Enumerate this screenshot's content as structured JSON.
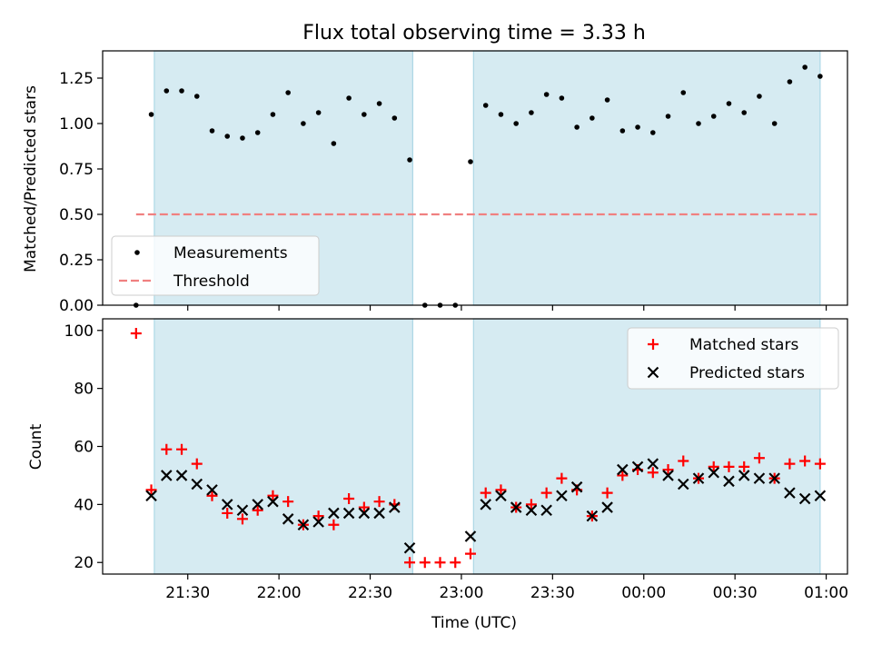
{
  "figure": {
    "title": "Flux total observing time = 3.33 h",
    "xlabel": "Time (UTC)"
  },
  "colors": {
    "shade": "#add8e6",
    "measurement": "#000000",
    "threshold": "#f08080",
    "matched": "#ff0000",
    "predicted": "#000000"
  },
  "chart_data": [
    {
      "type": "scatter",
      "panel": "top",
      "ylabel": "Matched/Predicted stars",
      "xlim": [
        "21:02",
        "01:07"
      ],
      "ylim": [
        0,
        1.4
      ],
      "yticks": [
        "0.00",
        "0.25",
        "0.50",
        "0.75",
        "1.00",
        "1.25"
      ],
      "ytick_values": [
        0,
        0.25,
        0.5,
        0.75,
        1.0,
        1.25
      ],
      "shaded_spans": [
        [
          "21:19",
          "22:44"
        ],
        [
          "23:04",
          "00:58"
        ]
      ],
      "threshold": {
        "name": "Threshold",
        "value": 0.5,
        "x_range": [
          "21:13",
          "00:57"
        ]
      },
      "legend": {
        "position": "lower-left",
        "entries": [
          "Measurements",
          "Threshold"
        ]
      },
      "series": [
        {
          "name": "Measurements",
          "x": [
            "21:13",
            "21:18",
            "21:23",
            "21:28",
            "21:33",
            "21:38",
            "21:43",
            "21:48",
            "21:53",
            "21:58",
            "22:03",
            "22:08",
            "22:13",
            "22:18",
            "22:23",
            "22:28",
            "22:33",
            "22:38",
            "22:43",
            "22:48",
            "22:53",
            "22:58",
            "23:03",
            "23:08",
            "23:13",
            "23:18",
            "23:23",
            "23:28",
            "23:33",
            "23:38",
            "23:43",
            "23:48",
            "23:53",
            "23:58",
            "00:03",
            "00:08",
            "00:13",
            "00:18",
            "00:23",
            "00:28",
            "00:33",
            "00:38",
            "00:43",
            "00:48",
            "00:53",
            "00:58"
          ],
          "y": [
            0.0,
            1.05,
            1.18,
            1.18,
            1.15,
            0.96,
            0.93,
            0.92,
            0.95,
            1.05,
            1.17,
            1.0,
            1.06,
            0.89,
            1.14,
            1.05,
            1.11,
            1.03,
            0.8,
            0.0,
            0.0,
            0.0,
            0.79,
            1.1,
            1.05,
            1.0,
            1.06,
            1.16,
            1.14,
            0.98,
            1.03,
            1.13,
            0.96,
            0.98,
            0.95,
            1.04,
            1.17,
            1.0,
            1.04,
            1.11,
            1.06,
            1.15,
            1.0,
            1.23,
            1.31,
            1.26
          ]
        }
      ]
    },
    {
      "type": "scatter",
      "panel": "bottom",
      "ylabel": "Count",
      "xlim": [
        "21:02",
        "01:07"
      ],
      "ylim": [
        16,
        104
      ],
      "yticks": [
        "20",
        "40",
        "60",
        "80",
        "100"
      ],
      "ytick_values": [
        20,
        40,
        60,
        80,
        100
      ],
      "xticks": [
        "21:30",
        "22:00",
        "22:30",
        "23:00",
        "23:30",
        "00:00",
        "00:30",
        "01:00"
      ],
      "shaded_spans": [
        [
          "21:19",
          "22:44"
        ],
        [
          "23:04",
          "00:58"
        ]
      ],
      "legend": {
        "position": "top-right",
        "entries": [
          "Matched stars",
          "Predicted stars"
        ]
      },
      "series": [
        {
          "name": "Matched stars",
          "marker": "+",
          "x": [
            "21:13",
            "21:18",
            "21:23",
            "21:28",
            "21:33",
            "21:38",
            "21:43",
            "21:48",
            "21:53",
            "21:58",
            "22:03",
            "22:08",
            "22:13",
            "22:18",
            "22:23",
            "22:28",
            "22:33",
            "22:38",
            "22:43",
            "22:48",
            "22:53",
            "22:58",
            "23:03",
            "23:08",
            "23:13",
            "23:18",
            "23:23",
            "23:28",
            "23:33",
            "23:38",
            "23:43",
            "23:48",
            "23:53",
            "23:58",
            "00:03",
            "00:08",
            "00:13",
            "00:18",
            "00:23",
            "00:28",
            "00:33",
            "00:38",
            "00:43",
            "00:48",
            "00:53",
            "00:58"
          ],
          "y": [
            99,
            45,
            59,
            59,
            54,
            43,
            37,
            35,
            38,
            43,
            41,
            33,
            36,
            33,
            42,
            39,
            41,
            40,
            20,
            20,
            20,
            20,
            23,
            44,
            45,
            39,
            40,
            44,
            49,
            45,
            36,
            44,
            50,
            52,
            51,
            52,
            55,
            49,
            53,
            53,
            53,
            56,
            49,
            54,
            55,
            54
          ]
        },
        {
          "name": "Predicted stars",
          "marker": "x",
          "x": [
            "21:18",
            "21:23",
            "21:28",
            "21:33",
            "21:38",
            "21:43",
            "21:48",
            "21:53",
            "21:58",
            "22:03",
            "22:08",
            "22:13",
            "22:18",
            "22:23",
            "22:28",
            "22:33",
            "22:38",
            "22:43",
            "23:03",
            "23:08",
            "23:13",
            "23:18",
            "23:23",
            "23:28",
            "23:33",
            "23:38",
            "23:43",
            "23:48",
            "23:53",
            "23:58",
            "00:03",
            "00:08",
            "00:13",
            "00:18",
            "00:23",
            "00:28",
            "00:33",
            "00:38",
            "00:43",
            "00:48",
            "00:53",
            "00:58"
          ],
          "y": [
            43,
            50,
            50,
            47,
            45,
            40,
            38,
            40,
            41,
            35,
            33,
            34,
            37,
            37,
            37,
            37,
            39,
            25,
            29,
            40,
            43,
            39,
            38,
            38,
            43,
            46,
            36,
            39,
            52,
            53,
            54,
            50,
            47,
            49,
            51,
            48,
            50,
            49,
            49,
            44,
            42,
            43
          ]
        }
      ]
    }
  ]
}
